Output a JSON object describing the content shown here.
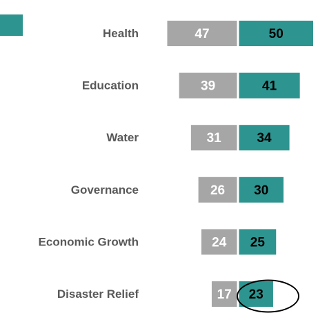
{
  "chart_data": {
    "type": "bar",
    "orientation": "horizontal-diverging",
    "categories": [
      "Health",
      "Education",
      "Water",
      "Governance",
      "Economic Growth",
      "Disaster Relief"
    ],
    "series": [
      {
        "values": [
          47,
          39,
          31,
          26,
          24,
          17
        ]
      },
      {
        "values": [
          50,
          41,
          34,
          30,
          25,
          23
        ]
      }
    ],
    "legend": {
      "position": "top-left",
      "visible_swatch_color": "#2e9490"
    },
    "annotations": [
      {
        "type": "ellipse",
        "target_category": "Disaster Relief",
        "target_series": 1,
        "color": "#000000"
      }
    ],
    "title": "",
    "xlabel": "",
    "ylabel": "",
    "grid": false
  },
  "colors": {
    "series_left": "#a6a6a6",
    "series_right": "#2e9490",
    "category_text": "#595959",
    "value_text_left": "#ffffff",
    "value_text_right": "#000000"
  }
}
